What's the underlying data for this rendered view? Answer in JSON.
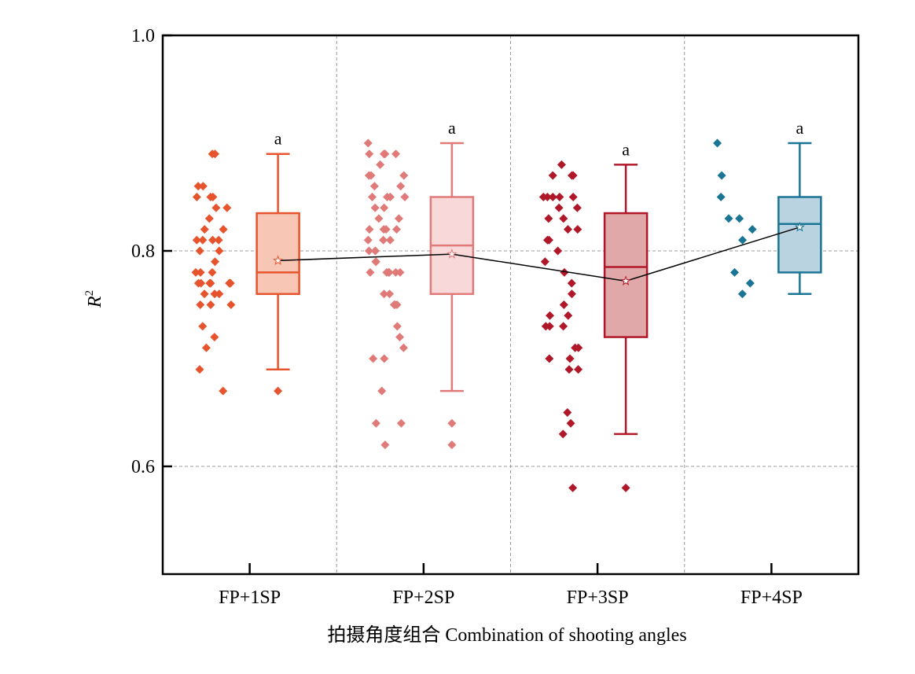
{
  "chart_data": {
    "type": "box",
    "xlabel": "拍摄角度组合 Combination of shooting angles",
    "ylabel": "R",
    "ylabel_sup": "2",
    "ylim": [
      0.5,
      1.0
    ],
    "yticks": [
      "0.6",
      "0.8",
      "1.0"
    ],
    "grid": true,
    "categories": [
      "FP+1SP",
      "FP+2SP",
      "FP+3SP",
      "FP+4SP"
    ],
    "series": [
      {
        "category": "FP+1SP",
        "color": "#e6532d",
        "fill": "#f8c6b4",
        "box": {
          "min": 0.69,
          "q1": 0.76,
          "median": 0.78,
          "q3": 0.835,
          "max": 0.89
        },
        "mean": 0.791,
        "outliers": [
          0.67
        ],
        "letter": "a",
        "points": [
          0.89,
          0.89,
          0.86,
          0.86,
          0.85,
          0.85,
          0.85,
          0.84,
          0.84,
          0.83,
          0.82,
          0.82,
          0.81,
          0.81,
          0.81,
          0.81,
          0.8,
          0.8,
          0.79,
          0.78,
          0.78,
          0.78,
          0.77,
          0.77,
          0.77,
          0.77,
          0.77,
          0.77,
          0.77,
          0.76,
          0.76,
          0.76,
          0.75,
          0.75,
          0.75,
          0.73,
          0.72,
          0.71,
          0.69,
          0.67
        ]
      },
      {
        "category": "FP+2SP",
        "color": "#e07a78",
        "fill": "#f8d8d8",
        "box": {
          "min": 0.67,
          "q1": 0.76,
          "median": 0.805,
          "q3": 0.85,
          "max": 0.9
        },
        "mean": 0.797,
        "outliers": [
          0.64,
          0.62
        ],
        "letter": "a",
        "points": [
          0.9,
          0.89,
          0.89,
          0.89,
          0.89,
          0.88,
          0.87,
          0.87,
          0.87,
          0.86,
          0.86,
          0.85,
          0.85,
          0.85,
          0.85,
          0.84,
          0.84,
          0.83,
          0.83,
          0.82,
          0.82,
          0.82,
          0.82,
          0.81,
          0.81,
          0.81,
          0.8,
          0.8,
          0.8,
          0.79,
          0.79,
          0.78,
          0.78,
          0.78,
          0.78,
          0.78,
          0.78,
          0.76,
          0.76,
          0.75,
          0.75,
          0.75,
          0.73,
          0.72,
          0.71,
          0.7,
          0.7,
          0.67,
          0.64,
          0.64,
          0.62
        ]
      },
      {
        "category": "FP+3SP",
        "color": "#b0182a",
        "fill": "#e0a8a8",
        "box": {
          "min": 0.63,
          "q1": 0.72,
          "median": 0.785,
          "q3": 0.835,
          "max": 0.88
        },
        "mean": 0.772,
        "outliers": [
          0.58
        ],
        "letter": "a",
        "points": [
          0.88,
          0.87,
          0.87,
          0.87,
          0.85,
          0.85,
          0.85,
          0.85,
          0.85,
          0.84,
          0.84,
          0.83,
          0.83,
          0.82,
          0.82,
          0.81,
          0.81,
          0.8,
          0.79,
          0.78,
          0.77,
          0.76,
          0.75,
          0.74,
          0.74,
          0.73,
          0.73,
          0.73,
          0.71,
          0.71,
          0.7,
          0.7,
          0.69,
          0.69,
          0.65,
          0.64,
          0.63,
          0.58
        ]
      },
      {
        "category": "FP+4SP",
        "color": "#1a7494",
        "fill": "#b9d4e0",
        "box": {
          "min": 0.76,
          "q1": 0.78,
          "median": 0.825,
          "q3": 0.85,
          "max": 0.9
        },
        "mean": 0.822,
        "outliers": [],
        "letter": "a",
        "points": [
          0.9,
          0.87,
          0.85,
          0.83,
          0.83,
          0.82,
          0.81,
          0.78,
          0.77,
          0.76
        ]
      }
    ]
  }
}
